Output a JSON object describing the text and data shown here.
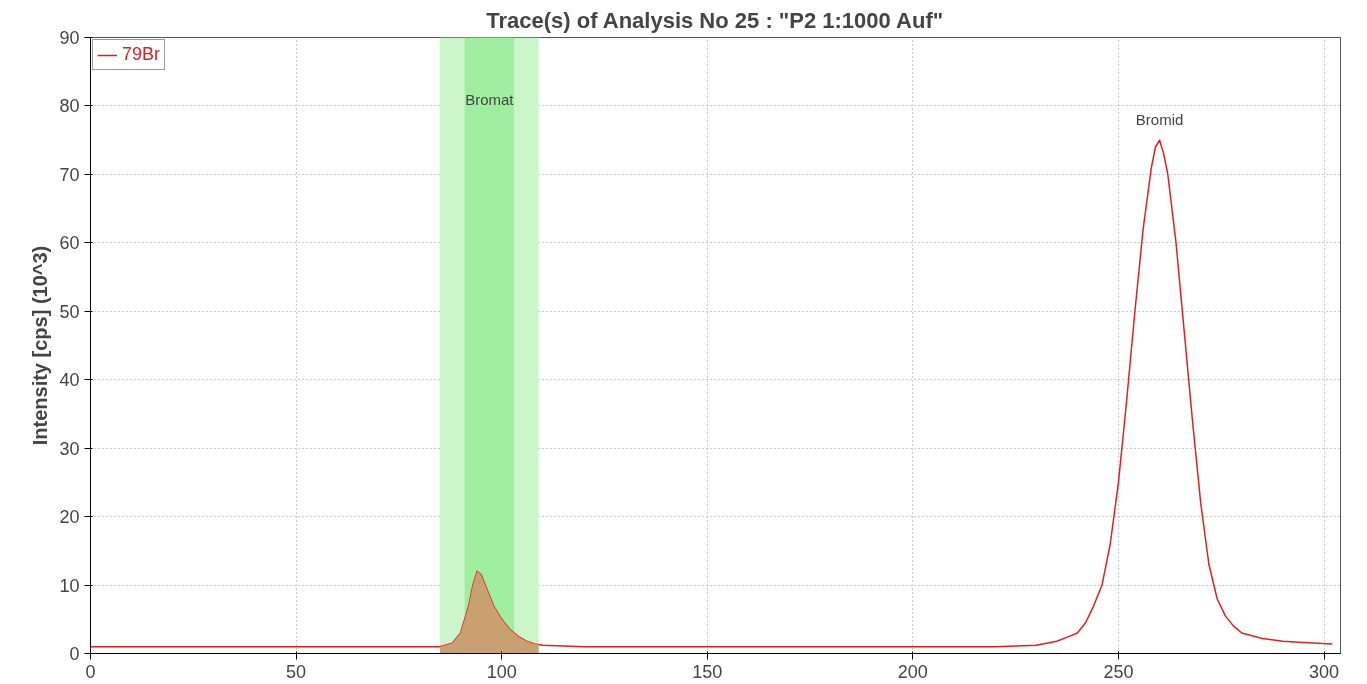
{
  "chart_data": {
    "type": "line",
    "title": "Trace(s) of Analysis No 25 : \"P2 1:1000 Auf\"",
    "ylabel": "Intensity [cps] (10^3)",
    "series": [
      {
        "name": "79Br",
        "color": "#e02020",
        "x": [
          0,
          20,
          40,
          60,
          80,
          85,
          88,
          90,
          92,
          93,
          94,
          95,
          96,
          98,
          100,
          102,
          104,
          106,
          108,
          110,
          120,
          140,
          160,
          180,
          200,
          220,
          230,
          235,
          238,
          240,
          242,
          244,
          246,
          248,
          250,
          252,
          254,
          256,
          258,
          259,
          260,
          261,
          262,
          264,
          266,
          268,
          270,
          272,
          274,
          276,
          278,
          280,
          285,
          290,
          295,
          302
        ],
        "values": [
          1,
          1,
          1,
          1,
          1,
          1,
          1.5,
          3,
          7,
          10,
          12,
          11.5,
          10,
          7,
          5,
          3.5,
          2.5,
          1.8,
          1.4,
          1.2,
          1,
          1,
          1,
          1,
          1,
          1,
          1.2,
          1.8,
          2.5,
          3,
          4.5,
          7,
          10,
          16,
          25,
          37,
          50,
          62,
          71,
          74,
          75,
          73,
          70,
          60,
          47,
          34,
          22,
          13,
          8,
          5.5,
          4,
          3,
          2.2,
          1.8,
          1.6,
          1.4
        ]
      },
      {
        "type": "area",
        "color": "#c9a070",
        "x": [
          85,
          88,
          90,
          92,
          93,
          94,
          95,
          96,
          98,
          100,
          102,
          104,
          106,
          108,
          109
        ],
        "values": [
          1,
          1.5,
          3,
          7,
          10,
          12,
          11.5,
          10,
          7,
          5,
          3.5,
          2.5,
          1.8,
          1.4,
          1.3
        ]
      }
    ],
    "bands": [
      {
        "axis": "x",
        "from": 85,
        "to": 109,
        "color": "#ccf5cc",
        "label": "Bromat"
      },
      {
        "axis": "x",
        "from": 91,
        "to": 103,
        "color": "#a0eea0"
      }
    ],
    "annotations": [
      {
        "text": "Bromid",
        "x": 260,
        "y": 75
      }
    ],
    "xlim": [
      0,
      304
    ],
    "ylim": [
      0,
      90
    ],
    "xticks": [
      0,
      50,
      100,
      150,
      200,
      250,
      300
    ],
    "yticks": [
      0,
      10,
      20,
      30,
      40,
      50,
      60,
      70,
      80,
      90
    ],
    "grid": true,
    "legend": "top left",
    "line_style": "solid"
  }
}
